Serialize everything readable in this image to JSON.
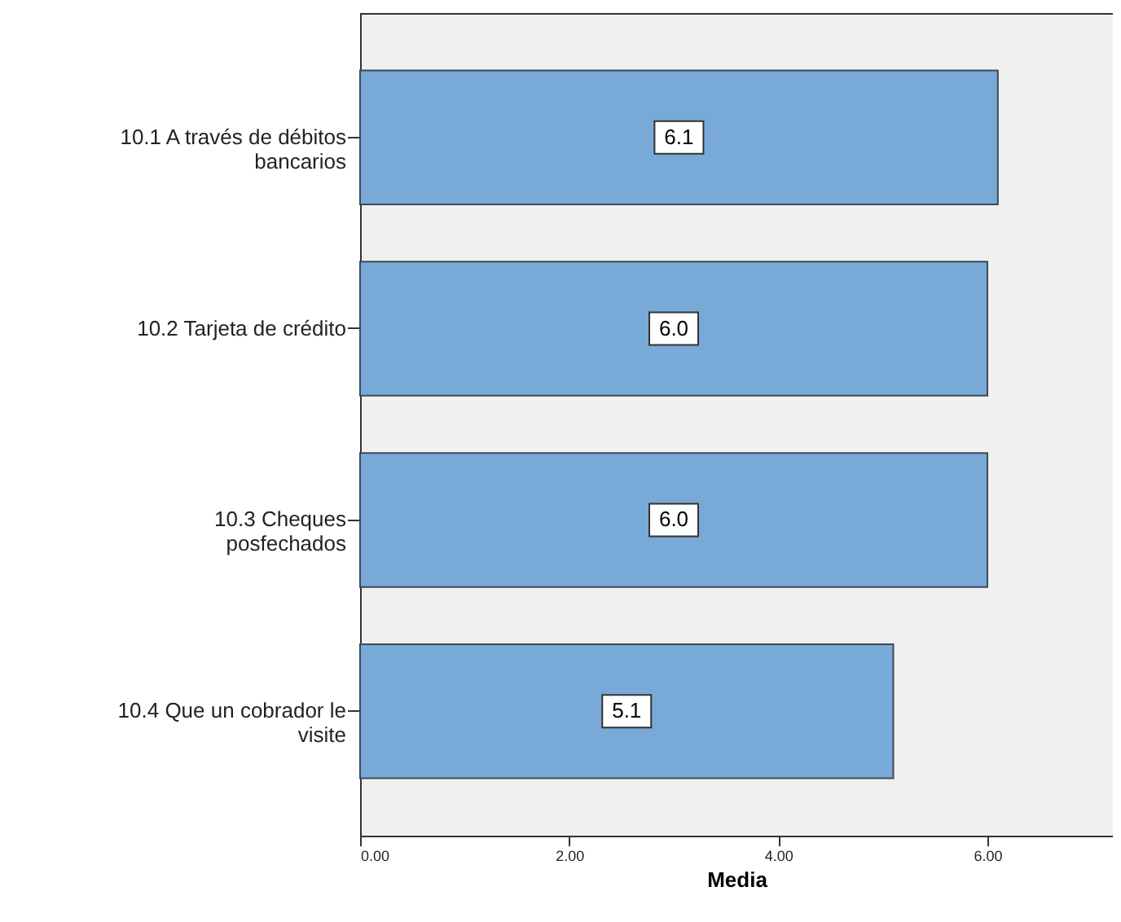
{
  "chart_data": {
    "type": "bar",
    "orientation": "horizontal",
    "xlabel": "Media",
    "categories": [
      "10.1 A través de débitos\nbancarios",
      "10.2 Tarjeta de crédito",
      "10.3 Cheques\nposfechados",
      "10.4 Que un cobrador le\nvisite"
    ],
    "values": [
      6.1,
      6.0,
      6.0,
      5.1
    ],
    "value_labels": [
      "6.1",
      "6.0",
      "6.0",
      "5.1"
    ],
    "color": "#79a9d6",
    "xlim": [
      0,
      7.2
    ],
    "xticks": [
      {
        "value": 0,
        "label": "0.00"
      },
      {
        "value": 2,
        "label": "2.00"
      },
      {
        "value": 4,
        "label": "4.00"
      },
      {
        "value": 6,
        "label": "6.00"
      }
    ],
    "grid": false
  }
}
